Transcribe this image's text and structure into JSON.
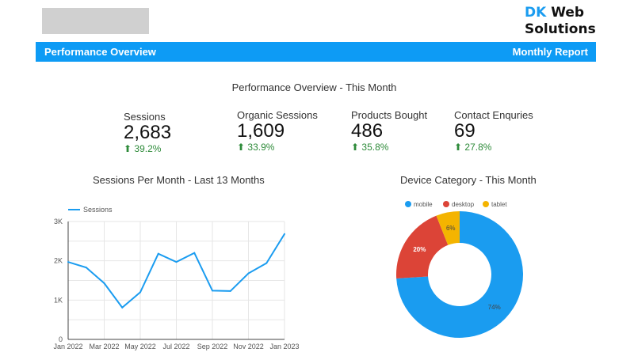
{
  "header": {
    "brand_a": "DK",
    "brand_b": "Web",
    "brand_c": "Solutions",
    "bar_left": "Performance Overview",
    "bar_right": "Monthly Report"
  },
  "title": "Performance Overview - This Month",
  "kpis": [
    {
      "label": "Sessions",
      "value": "2,683",
      "change": "39.2%"
    },
    {
      "label": "Organic Sessions",
      "value": "1,609",
      "change": "33.9%"
    },
    {
      "label": "Products Bought",
      "value": "486",
      "change": "35.8%"
    },
    {
      "label": "Contact Enquries",
      "value": "69",
      "change": "27.8%"
    }
  ],
  "chart_data": [
    {
      "type": "line",
      "title": "Sessions Per Month - Last 13 Months",
      "legend_position": "top-left",
      "grid": true,
      "x": [
        "Jan 2022",
        "Feb 2022",
        "Mar 2022",
        "Apr 2022",
        "May 2022",
        "Jun 2022",
        "Jul 2022",
        "Aug 2022",
        "Sep 2022",
        "Oct 2022",
        "Nov 2022",
        "Dec 2022",
        "Jan 2023"
      ],
      "xtick_labels": [
        "Jan 2022",
        "Mar 2022",
        "May 2022",
        "Jul 2022",
        "Sep 2022",
        "Nov 2022",
        "Jan 2023"
      ],
      "ytick_labels": [
        "0",
        "1K",
        "2K",
        "3K"
      ],
      "ylim": [
        0,
        3000
      ],
      "series": [
        {
          "name": "Sessions",
          "color": "#1a9cf0",
          "values": [
            1970,
            1830,
            1430,
            810,
            1200,
            2180,
            1970,
            2200,
            1240,
            1230,
            1680,
            1940,
            2683
          ]
        }
      ]
    },
    {
      "type": "pie",
      "title": "Device Category - This Month",
      "donut": true,
      "legend_position": "top",
      "slices": [
        {
          "name": "mobile",
          "value": 74,
          "label": "74%",
          "color": "#1a9cf0"
        },
        {
          "name": "desktop",
          "value": 20,
          "label": "20%",
          "color": "#dc4437"
        },
        {
          "name": "tablet",
          "value": 6,
          "label": "6%",
          "color": "#f4b400"
        }
      ]
    }
  ]
}
